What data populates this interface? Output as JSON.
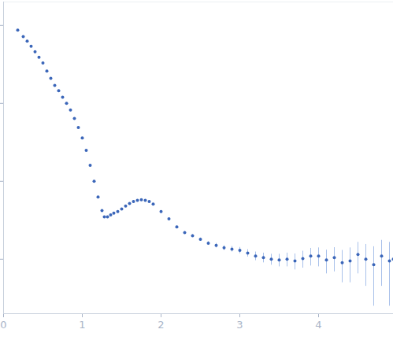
{
  "chart_data": {
    "type": "scatter",
    "log": "y",
    "tick_labels": "x",
    "color": "#3b66b9",
    "marker": "circle",
    "xlim": [
      0,
      4.95
    ],
    "xticks": [
      0,
      1,
      2,
      3,
      4
    ],
    "ylim": [
      0.0002,
      2
    ],
    "yticks": [
      0.001,
      0.01,
      0.1,
      1
    ],
    "x": [
      0.18,
      0.25,
      0.3,
      0.35,
      0.4,
      0.45,
      0.5,
      0.55,
      0.6,
      0.65,
      0.7,
      0.75,
      0.8,
      0.85,
      0.9,
      0.95,
      1.0,
      1.05,
      1.1,
      1.15,
      1.2,
      1.25,
      1.28,
      1.32,
      1.36,
      1.4,
      1.45,
      1.5,
      1.55,
      1.6,
      1.65,
      1.7,
      1.75,
      1.8,
      1.85,
      1.9,
      2.0,
      2.1,
      2.2,
      2.3,
      2.4,
      2.5,
      2.6,
      2.7,
      2.8,
      2.9,
      3.0,
      3.1,
      3.2,
      3.3,
      3.4,
      3.5,
      3.6,
      3.7,
      3.8,
      3.9,
      4.0,
      4.1,
      4.2,
      4.3,
      4.4,
      4.5,
      4.6,
      4.7,
      4.8,
      4.9,
      4.95
    ],
    "values": [
      0.87,
      0.72,
      0.63,
      0.54,
      0.46,
      0.39,
      0.33,
      0.26,
      0.21,
      0.17,
      0.145,
      0.12,
      0.1,
      0.082,
      0.064,
      0.049,
      0.036,
      0.025,
      0.016,
      0.01,
      0.0063,
      0.0042,
      0.0035,
      0.0035,
      0.0037,
      0.0039,
      0.0041,
      0.0044,
      0.0048,
      0.0052,
      0.0055,
      0.0057,
      0.0058,
      0.0057,
      0.0055,
      0.0051,
      0.0041,
      0.0033,
      0.0026,
      0.0022,
      0.002,
      0.0018,
      0.0016,
      0.0015,
      0.0014,
      0.00135,
      0.0013,
      0.0012,
      0.0011,
      0.00105,
      0.001,
      0.00098,
      0.001,
      0.00095,
      0.00102,
      0.0011,
      0.0011,
      0.00098,
      0.00105,
      0.0009,
      0.00095,
      0.00115,
      0.001,
      0.00085,
      0.0011,
      0.00095,
      0.001
    ],
    "errors": [
      0.005,
      0.004,
      0.003,
      0.003,
      0.002,
      0.002,
      0.002,
      0.001,
      0.001,
      0.001,
      0.001,
      0.0008,
      0.0006,
      0.0005,
      0.0004,
      0.0003,
      0.0002,
      0.00015,
      0.0001,
      8e-05,
      6e-05,
      5e-05,
      5e-05,
      5e-05,
      5e-05,
      5e-05,
      5e-05,
      5e-05,
      5e-05,
      5e-05,
      5e-05,
      5e-05,
      5e-05,
      5e-05,
      5e-05,
      5e-05,
      6e-05,
      6e-05,
      7e-05,
      7e-05,
      8e-05,
      8e-05,
      9e-05,
      0.0001,
      0.0001,
      0.00011,
      0.00012,
      0.00013,
      0.00014,
      0.00015,
      0.00016,
      0.00018,
      0.0002,
      0.00022,
      0.00025,
      0.00028,
      0.0003,
      0.00033,
      0.00036,
      0.0004,
      0.00045,
      0.0005,
      0.00055,
      0.0006,
      0.00065,
      0.0007,
      0.0008
    ]
  }
}
